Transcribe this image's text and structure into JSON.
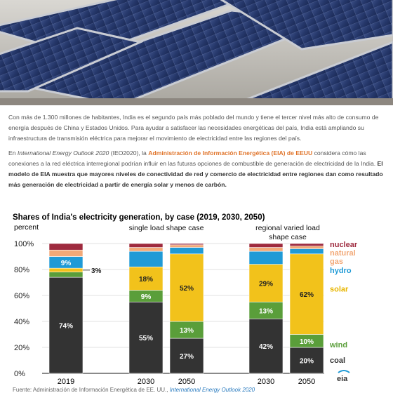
{
  "article": {
    "para1": "Con más de 1.300 millones de habitantes, India es el segundo país más poblado del mundo y tiene el tercer nivel más alto de consumo de energía después de China y Estados Unidos. Para ayudar a satisfacer las necesidades energéticas del país, India está ampliando su infraestructura de transmisión eléctrica para mejorar el movimiento de electricidad entre las regiones del país.",
    "para2_prefix": "En ",
    "para2_italic": "International Energy Outlook 2020",
    "para2_after_italic": " (IEO2020), la ",
    "para2_link": "Administración de Información Energética (EIA) de EEUU",
    "para2_middle": " considera cómo las conexiones a la red eléctrica interregional podrían influir en las futuras opciones de combustible de generación de electricidad de la India. ",
    "para2_bold": "El modelo de EIA muestra que mayores niveles de conectividad de red y comercio de electricidad entre regiones dan como resultado más generación de electricidad a partir de energía solar y menos de carbón.",
    "source_label": "Fuente: ",
    "source_text": "Administración de Información Energética de EE. UU.,",
    "source_link": "International Energy Outlook 2020"
  },
  "chart_data": {
    "type": "bar",
    "stacked": true,
    "title": "Shares of India's electricity generation, by case (2019, 2030, 2050)",
    "ylabel": "percent",
    "ylim": [
      0,
      100
    ],
    "yticks": [
      "0%",
      "20%",
      "40%",
      "60%",
      "80%",
      "100%"
    ],
    "groups": [
      "",
      "single load shape case",
      "regional varied load shape case"
    ],
    "categories": [
      "2019",
      "2030",
      "2050",
      "2030",
      "2050"
    ],
    "group_of_category": [
      0,
      1,
      1,
      2,
      2
    ],
    "series": [
      {
        "name": "coal",
        "color": "#333333",
        "values": [
          74,
          55,
          27,
          42,
          20
        ]
      },
      {
        "name": "wind",
        "color": "#5a9e3a",
        "values": [
          4,
          9,
          13,
          13,
          10
        ]
      },
      {
        "name": "solar",
        "color": "#f2c21b",
        "values": [
          3,
          18,
          52,
          29,
          62
        ]
      },
      {
        "name": "hydro",
        "color": "#1f9ad6",
        "values": [
          9,
          12,
          5,
          10,
          4
        ]
      },
      {
        "name": "natural gas",
        "color": "#f2a978",
        "values": [
          5,
          3,
          2,
          3,
          2
        ]
      },
      {
        "name": "nuclear",
        "color": "#9e2a3e",
        "values": [
          5,
          3,
          1,
          3,
          2
        ]
      }
    ],
    "data_labels": [
      {
        "category": 0,
        "series": "coal",
        "text": "74%"
      },
      {
        "category": 0,
        "series": "hydro",
        "text": "9%"
      },
      {
        "category": 0,
        "series": "solar",
        "text": "3%",
        "callout": true
      },
      {
        "category": 1,
        "series": "coal",
        "text": "55%"
      },
      {
        "category": 1,
        "series": "wind",
        "text": "9%"
      },
      {
        "category": 1,
        "series": "solar",
        "text": "18%"
      },
      {
        "category": 2,
        "series": "coal",
        "text": "27%"
      },
      {
        "category": 2,
        "series": "wind",
        "text": "13%"
      },
      {
        "category": 2,
        "series": "solar",
        "text": "52%"
      },
      {
        "category": 3,
        "series": "coal",
        "text": "42%"
      },
      {
        "category": 3,
        "series": "wind",
        "text": "13%"
      },
      {
        "category": 3,
        "series": "solar",
        "text": "29%"
      },
      {
        "category": 4,
        "series": "coal",
        "text": "20%"
      },
      {
        "category": 4,
        "series": "wind",
        "text": "10%"
      },
      {
        "category": 4,
        "series": "solar",
        "text": "62%"
      }
    ],
    "legend": [
      {
        "lines": [
          "nuclear"
        ],
        "color": "#9e2a3e"
      },
      {
        "lines": [
          "natural",
          "gas"
        ],
        "color": "#f2a978"
      },
      {
        "lines": [
          "hydro"
        ],
        "color": "#1f9ad6"
      },
      {
        "lines": [
          "solar"
        ],
        "color": "#e8b600"
      },
      {
        "lines": [
          "wind"
        ],
        "color": "#5a9e3a"
      },
      {
        "lines": [
          "coal"
        ],
        "color": "#333333"
      }
    ],
    "logo_text": "eia"
  }
}
